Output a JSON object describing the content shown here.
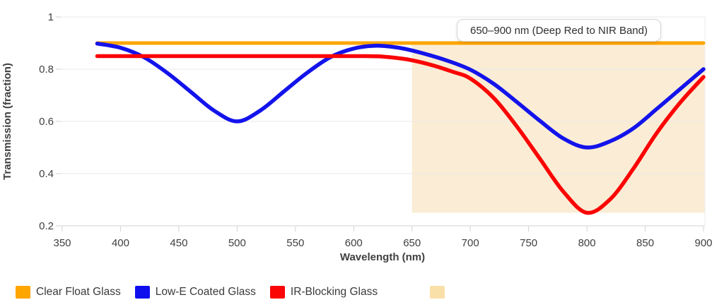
{
  "chart_data": {
    "type": "line",
    "title": "",
    "xlabel": "Wavelength (nm)",
    "ylabel": "Transmission (fraction)",
    "xlim": [
      350,
      900
    ],
    "ylim": [
      0.2,
      1.0
    ],
    "x_ticks": [
      350,
      400,
      450,
      500,
      550,
      600,
      650,
      700,
      750,
      800,
      850,
      900
    ],
    "y_ticks": [
      0.2,
      0.4,
      0.6,
      0.8,
      1
    ],
    "grid": true,
    "legend_position": "bottom",
    "series": [
      {
        "name": "Clear Float Glass",
        "color": "#FFA500",
        "stroke_width": 5,
        "points": [
          [
            380,
            0.9
          ],
          [
            900,
            0.9
          ]
        ]
      },
      {
        "name": "Low-E Coated Glass",
        "color": "#1313EB",
        "stroke_width": 5.5,
        "points": [
          [
            380,
            0.898
          ],
          [
            400,
            0.882
          ],
          [
            420,
            0.846
          ],
          [
            440,
            0.786
          ],
          [
            460,
            0.714
          ],
          [
            480,
            0.642
          ],
          [
            500,
            0.6
          ],
          [
            520,
            0.642
          ],
          [
            540,
            0.714
          ],
          [
            560,
            0.786
          ],
          [
            580,
            0.846
          ],
          [
            600,
            0.879
          ],
          [
            620,
            0.89
          ],
          [
            640,
            0.881
          ],
          [
            660,
            0.86
          ],
          [
            680,
            0.833
          ],
          [
            700,
            0.798
          ],
          [
            720,
            0.744
          ],
          [
            740,
            0.674
          ],
          [
            760,
            0.601
          ],
          [
            780,
            0.534
          ],
          [
            800,
            0.5
          ],
          [
            820,
            0.524
          ],
          [
            840,
            0.574
          ],
          [
            860,
            0.648
          ],
          [
            880,
            0.724
          ],
          [
            900,
            0.8
          ]
        ]
      },
      {
        "name": "IR-Blocking Glass",
        "color": "#FB0404",
        "stroke_width": 5.5,
        "points": [
          [
            380,
            0.85
          ],
          [
            420,
            0.85
          ],
          [
            460,
            0.85
          ],
          [
            500,
            0.85
          ],
          [
            540,
            0.85
          ],
          [
            580,
            0.85
          ],
          [
            605,
            0.85
          ],
          [
            625,
            0.848
          ],
          [
            645,
            0.838
          ],
          [
            665,
            0.818
          ],
          [
            685,
            0.79
          ],
          [
            700,
            0.764
          ],
          [
            720,
            0.69
          ],
          [
            740,
            0.58
          ],
          [
            760,
            0.455
          ],
          [
            780,
            0.33
          ],
          [
            800,
            0.25
          ],
          [
            820,
            0.302
          ],
          [
            840,
            0.42
          ],
          [
            860,
            0.556
          ],
          [
            880,
            0.672
          ],
          [
            900,
            0.77
          ]
        ]
      }
    ],
    "band": {
      "label": "650–900 nm (Deep Red to NIR Band)",
      "x_range": [
        650,
        900
      ],
      "y_range": [
        0.25,
        0.9
      ],
      "color": "#FBEDD5"
    }
  },
  "legend": {
    "items": [
      {
        "label": "Clear Float Glass",
        "color": "#FFA500"
      },
      {
        "label": "Low-E Coated Glass",
        "color": "#0F0FEE"
      },
      {
        "label": "IR-Blocking Glass",
        "color": "#FB0404"
      },
      {
        "label": "",
        "color": "#F9DFA8"
      }
    ]
  }
}
